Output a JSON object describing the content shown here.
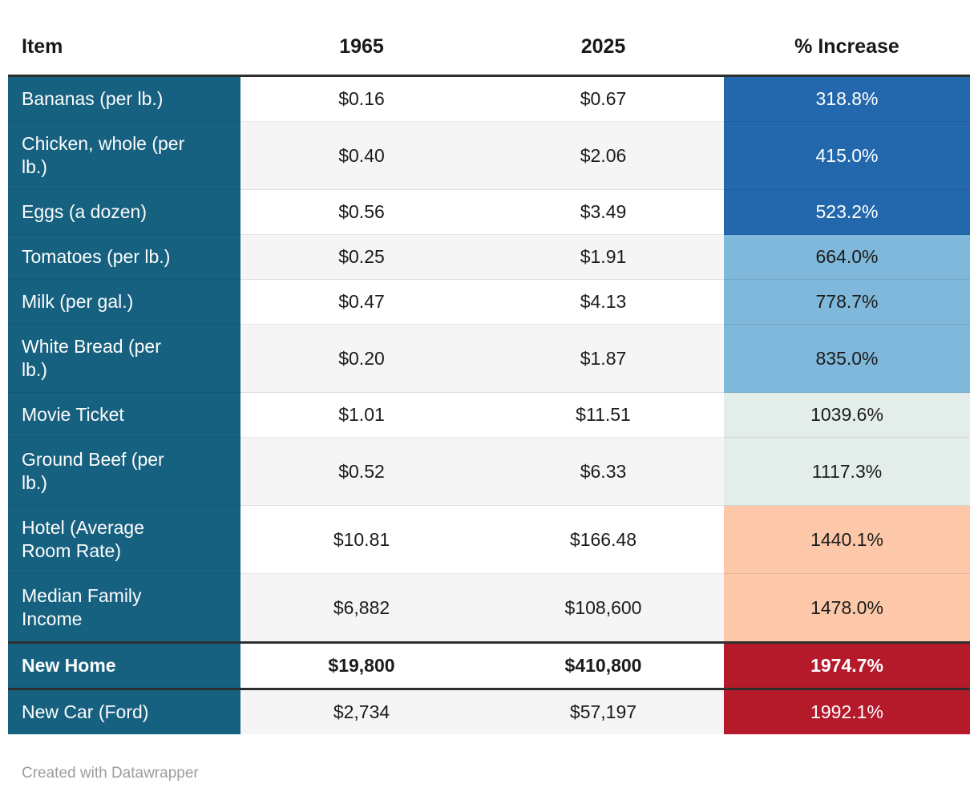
{
  "page": {
    "background": "#ffffff",
    "attribution": "Created with Datawrapper"
  },
  "colors": {
    "item_column_bg": "#176180",
    "item_text": "#fcfcfc",
    "zebra_odd_bg": "#ffffff",
    "zebra_even_bg": "#f5f5f5",
    "strong_border": "#2e2e2e",
    "body_text": "#1b1b1b",
    "attribution_text": "#9c9c9c",
    "bands": {
      "blue_dark": {
        "bg": "#2368ac",
        "text": "#ffffff"
      },
      "blue_light": {
        "bg": "#7fb8da",
        "text": "#1b1b1b"
      },
      "green_pale": {
        "bg": "#e3ede9",
        "text": "#1b1b1b"
      },
      "peach": {
        "bg": "#fcc8a9",
        "text": "#1b1b1b"
      },
      "red": {
        "bg": "#b51a2b",
        "text": "#ffffff"
      }
    }
  },
  "table": {
    "headers": [
      "Item",
      "1965",
      "2025",
      "% Increase"
    ],
    "rows": [
      {
        "item": "Bananas (per lb.)",
        "v1965": "$0.16",
        "v2025": "$0.67",
        "increase": "318.8%",
        "band": "blue_dark",
        "emphasis": false
      },
      {
        "item": "Chicken, whole (per lb.)",
        "v1965": "$0.40",
        "v2025": "$2.06",
        "increase": "415.0%",
        "band": "blue_dark",
        "emphasis": false
      },
      {
        "item": "Eggs (a dozen)",
        "v1965": "$0.56",
        "v2025": "$3.49",
        "increase": "523.2%",
        "band": "blue_dark",
        "emphasis": false
      },
      {
        "item": "Tomatoes (per lb.)",
        "v1965": "$0.25",
        "v2025": "$1.91",
        "increase": "664.0%",
        "band": "blue_light",
        "emphasis": false
      },
      {
        "item": "Milk (per gal.)",
        "v1965": "$0.47",
        "v2025": "$4.13",
        "increase": "778.7%",
        "band": "blue_light",
        "emphasis": false
      },
      {
        "item": "White Bread (per lb.)",
        "v1965": "$0.20",
        "v2025": "$1.87",
        "increase": "835.0%",
        "band": "blue_light",
        "emphasis": false
      },
      {
        "item": "Movie Ticket",
        "v1965": "$1.01",
        "v2025": "$11.51",
        "increase": "1039.6%",
        "band": "green_pale",
        "emphasis": false
      },
      {
        "item": "Ground Beef (per lb.)",
        "v1965": "$0.52",
        "v2025": "$6.33",
        "increase": "1117.3%",
        "band": "green_pale",
        "emphasis": false
      },
      {
        "item": "Hotel (Average Room Rate)",
        "v1965": "$10.81",
        "v2025": "$166.48",
        "increase": "1440.1%",
        "band": "peach",
        "emphasis": false
      },
      {
        "item": "Median Family Income",
        "v1965": "$6,882",
        "v2025": "$108,600",
        "increase": "1478.0%",
        "band": "peach",
        "emphasis": false
      },
      {
        "item": "New Home",
        "v1965": "$19,800",
        "v2025": "$410,800",
        "increase": "1974.7%",
        "band": "red",
        "emphasis": true
      },
      {
        "item": "New Car (Ford)",
        "v1965": "$2,734",
        "v2025": "$57,197",
        "increase": "1992.1%",
        "band": "red",
        "emphasis": false
      }
    ]
  },
  "chart_data": {
    "type": "table",
    "columns": [
      "Item",
      "1965",
      "2025",
      "% Increase"
    ],
    "rows": [
      {
        "item": "Bananas (per lb.)",
        "price_1965": 0.16,
        "price_2025": 0.67,
        "pct_increase": 318.8
      },
      {
        "item": "Chicken, whole (per lb.)",
        "price_1965": 0.4,
        "price_2025": 2.06,
        "pct_increase": 415.0
      },
      {
        "item": "Eggs (a dozen)",
        "price_1965": 0.56,
        "price_2025": 3.49,
        "pct_increase": 523.2
      },
      {
        "item": "Tomatoes (per lb.)",
        "price_1965": 0.25,
        "price_2025": 1.91,
        "pct_increase": 664.0
      },
      {
        "item": "Milk (per gal.)",
        "price_1965": 0.47,
        "price_2025": 4.13,
        "pct_increase": 778.7
      },
      {
        "item": "White Bread (per lb.)",
        "price_1965": 0.2,
        "price_2025": 1.87,
        "pct_increase": 835.0
      },
      {
        "item": "Movie Ticket",
        "price_1965": 1.01,
        "price_2025": 11.51,
        "pct_increase": 1039.6
      },
      {
        "item": "Ground Beef (per lb.)",
        "price_1965": 0.52,
        "price_2025": 6.33,
        "pct_increase": 1117.3
      },
      {
        "item": "Hotel (Average Room Rate)",
        "price_1965": 10.81,
        "price_2025": 166.48,
        "pct_increase": 1440.1
      },
      {
        "item": "Median Family Income",
        "price_1965": 6882,
        "price_2025": 108600,
        "pct_increase": 1478.0
      },
      {
        "item": "New Home",
        "price_1965": 19800,
        "price_2025": 410800,
        "pct_increase": 1974.7
      },
      {
        "item": "New Car (Ford)",
        "price_1965": 2734,
        "price_2025": 57197,
        "pct_increase": 1992.1
      }
    ],
    "heatmap": {
      "column": "% Increase",
      "palette_order": [
        "blue_dark",
        "blue_light",
        "green_pale",
        "peach",
        "red"
      ]
    },
    "footer": "Created with Datawrapper"
  }
}
